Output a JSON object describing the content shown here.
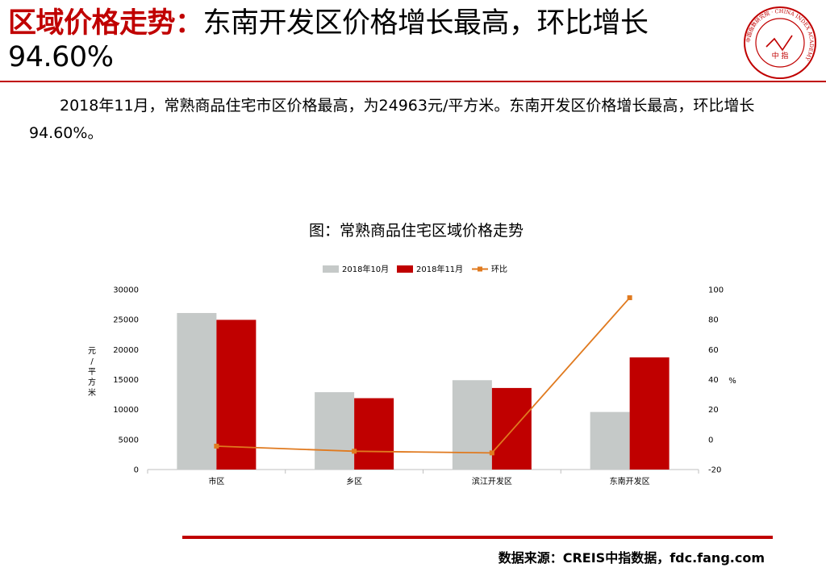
{
  "header": {
    "title_highlight": "区域价格走势：",
    "title_rest": "东南开发区价格增长最高，环比增长94.60%"
  },
  "logo": {
    "center_text": "中 指",
    "ring_text": "中国指数研究院 · CHINA INDEX ACADEMY"
  },
  "paragraph": "2018年11月，常熟商品住宅市区价格最高，为24963元/平方米。东南开发区价格增长最高，环比增长94.60%。",
  "footer": {
    "source": "数据来源：CREIS中指数据，fdc.fang.com"
  },
  "colors": {
    "accent": "#c00000",
    "oct": "#c5c9c8",
    "nov": "#c00000",
    "line": "#e07a1f"
  },
  "chart_data": {
    "type": "bar",
    "title": "图：常熟商品住宅区域价格走势",
    "categories": [
      "市区",
      "乡区",
      "滨江开发区",
      "东南开发区"
    ],
    "series": [
      {
        "name": "2018年10月",
        "type": "bar",
        "axis": "left",
        "values": [
          26100,
          12900,
          14900,
          9600
        ]
      },
      {
        "name": "2018年11月",
        "type": "bar",
        "axis": "left",
        "values": [
          24963,
          11900,
          13600,
          18700
        ]
      },
      {
        "name": "环比",
        "type": "line",
        "axis": "right",
        "values": [
          -4.4,
          -7.8,
          -8.9,
          94.6
        ]
      }
    ],
    "ylabel": "元/平方米",
    "ylim": [
      0,
      30000
    ],
    "yticks": [
      0,
      5000,
      10000,
      15000,
      20000,
      25000,
      30000
    ],
    "y2label": "%",
    "y2lim": [
      -20,
      100
    ],
    "y2ticks": [
      -20,
      0,
      20,
      40,
      60,
      80,
      100
    ],
    "legend": "top-center",
    "grid": false
  }
}
